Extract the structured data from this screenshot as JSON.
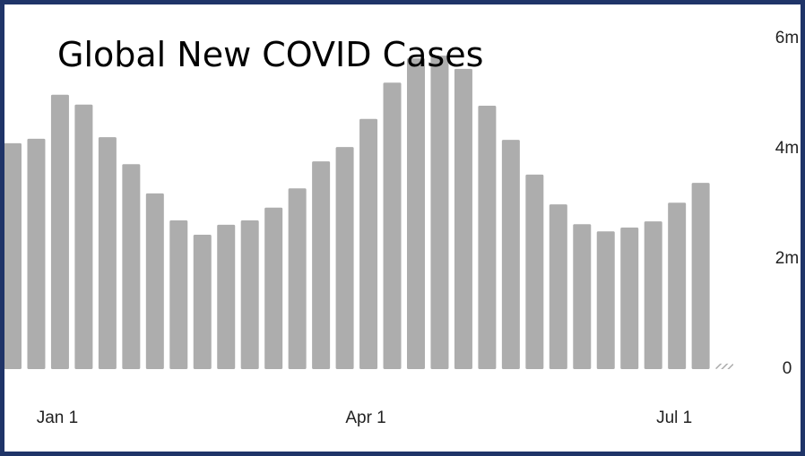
{
  "chart_data": {
    "type": "bar",
    "title": "Global New COVID Cases",
    "categories": [
      null,
      null,
      "Jan 1",
      null,
      null,
      null,
      null,
      null,
      null,
      null,
      null,
      null,
      null,
      null,
      null,
      "Apr 1",
      null,
      null,
      null,
      null,
      null,
      null,
      null,
      null,
      null,
      null,
      null,
      null,
      "Jul 1",
      null,
      null
    ],
    "values": [
      4100000,
      4180000,
      4980000,
      4800000,
      4210000,
      3720000,
      3190000,
      2700000,
      2440000,
      2620000,
      2700000,
      2930000,
      3280000,
      3770000,
      4030000,
      4540000,
      5200000,
      5640000,
      5690000,
      5450000,
      4780000,
      4160000,
      3530000,
      2990000,
      2630000,
      2500000,
      2570000,
      2680000,
      3020000,
      3380000,
      100000
    ],
    "color": "#adadad",
    "hatch_last": true,
    "ylim": [
      0,
      6000000
    ],
    "yticks": [
      0,
      {
        "value": 2000000,
        "label": "2m"
      },
      {
        "value": 4000000,
        "label": "4m"
      },
      {
        "value": 6000000,
        "label": "6m"
      }
    ]
  }
}
